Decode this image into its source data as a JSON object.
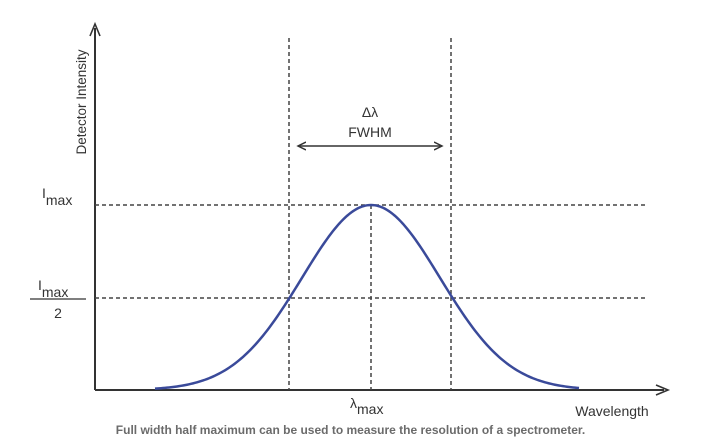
{
  "diagram": {
    "y_axis_label": "Detector Intensity",
    "x_axis_label": "Wavelength",
    "imax_label": "I",
    "imax_sub": "max",
    "half_num": "I",
    "half_sub": "max",
    "half_den": "2",
    "lambda_label": "λ",
    "lambda_sub": "max",
    "delta_label": "Δλ",
    "fwhm_label": "FWHM",
    "curve_color": "#3a4a9a",
    "axis_color": "#333333"
  },
  "caption": "Full width half maximum can be used to measure the resolution of a spectrometer."
}
